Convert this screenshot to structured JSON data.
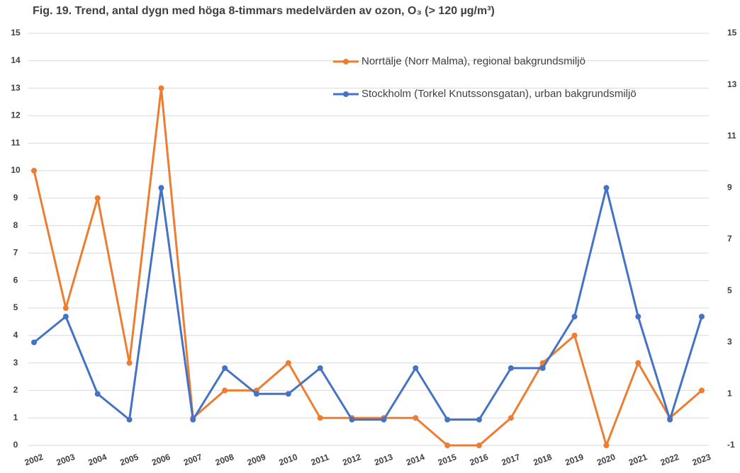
{
  "chart_data": {
    "type": "line",
    "title": "Fig. 19. Trend, antal dygn med höga 8-timmars medelvärden av ozon, O₃ (> 120 µg/m³)",
    "categories": [
      "2002",
      "2003",
      "2004",
      "2005",
      "2006",
      "2007",
      "2008",
      "2009",
      "2010",
      "2011",
      "2012",
      "2013",
      "2014",
      "2015",
      "2016",
      "2017",
      "2018",
      "2019",
      "2020",
      "2021",
      "2022",
      "2023"
    ],
    "series": [
      {
        "name": "Norrtälje (Norr Malma), regional bakgrundsmiljö",
        "color": "#ed7d31",
        "values": [
          10,
          5,
          9,
          3,
          13,
          1,
          2,
          2,
          3,
          1,
          1,
          1,
          1,
          0,
          0,
          1,
          3,
          4,
          0,
          3,
          1,
          2
        ]
      },
      {
        "name": "Stockholm (Torkel Knutssonsgatan), urban bakgrundsmiljö",
        "color": "#4472c4",
        "axis": "y2",
        "values": [
          3,
          4,
          1,
          0,
          9,
          0,
          2,
          1,
          1,
          2,
          0,
          0,
          2,
          0,
          0,
          2,
          2,
          4,
          9,
          4,
          0,
          4
        ]
      }
    ],
    "ylim": [
      0,
      15
    ],
    "yticks": [
      0,
      1,
      2,
      3,
      4,
      5,
      6,
      7,
      8,
      9,
      10,
      11,
      12,
      13,
      14,
      15
    ],
    "y2lim": [
      -1,
      15
    ],
    "y2ticks": [
      -1,
      1,
      3,
      5,
      7,
      9,
      11,
      13,
      15
    ],
    "grid": true,
    "legend": "upper right"
  }
}
